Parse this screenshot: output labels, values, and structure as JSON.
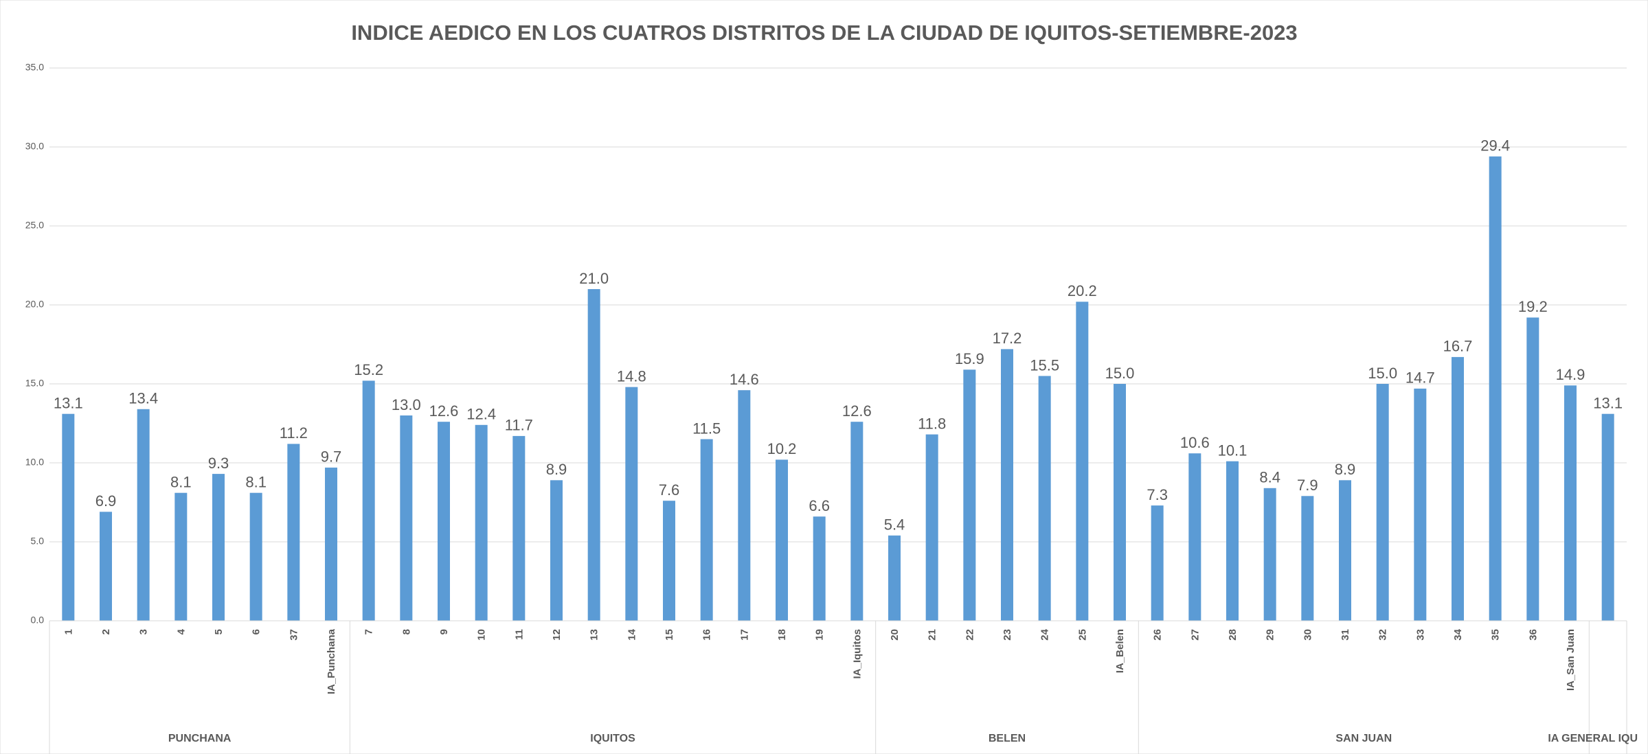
{
  "chart_data": {
    "type": "bar",
    "title": "INDICE AEDICO EN LOS CUATROS DISTRITOS DE LA CIUDAD DE IQUITOS-SETIEMBRE-2023",
    "color": "#5b9bd5",
    "grid": true,
    "ylim": [
      0,
      35
    ],
    "yticks": [
      {
        "value": 0,
        "label": "0.0"
      },
      {
        "value": 5,
        "label": "5.0"
      },
      {
        "value": 10,
        "label": "10.0"
      },
      {
        "value": 15,
        "label": "15.0"
      },
      {
        "value": 20,
        "label": "20.0"
      },
      {
        "value": 25,
        "label": "25.0"
      },
      {
        "value": 30,
        "label": "30.0"
      },
      {
        "value": 35,
        "label": "35.0"
      }
    ],
    "groups": [
      {
        "name": "PUNCHANA",
        "categories": [
          "1",
          "2",
          "3",
          "4",
          "5",
          "6",
          "37",
          "IA_Punchana"
        ],
        "values": [
          13.1,
          6.9,
          13.4,
          8.1,
          9.3,
          8.1,
          11.2,
          9.7
        ],
        "value_labels": [
          "13.1",
          "6.9",
          "13.4",
          "8.1",
          "9.3",
          "8.1",
          "11.2",
          "9.7"
        ]
      },
      {
        "name": "IQUITOS",
        "categories": [
          "7",
          "8",
          "9",
          "10",
          "11",
          "12",
          "13",
          "14",
          "15",
          "16",
          "17",
          "18",
          "19",
          "IA_Iquitos"
        ],
        "values": [
          15.2,
          13,
          12.6,
          12.4,
          11.7,
          8.9,
          21,
          14.8,
          7.6,
          11.5,
          14.6,
          10.2,
          6.6,
          12.6
        ],
        "value_labels": [
          "15.2",
          "13.0",
          "12.6",
          "12.4",
          "11.7",
          "8.9",
          "21.0",
          "14.8",
          "7.6",
          "11.5",
          "14.6",
          "10.2",
          "6.6",
          "12.6"
        ]
      },
      {
        "name": "BELEN",
        "categories": [
          "20",
          "21",
          "22",
          "23",
          "24",
          "25",
          "IA_Belen"
        ],
        "values": [
          5.4,
          11.8,
          15.9,
          17.2,
          15.5,
          20.2,
          15
        ],
        "value_labels": [
          "5.4",
          "11.8",
          "15.9",
          "17.2",
          "15.5",
          "20.2",
          "15.0"
        ]
      },
      {
        "name": "SAN JUAN",
        "categories": [
          "26",
          "27",
          "28",
          "29",
          "30",
          "31",
          "32",
          "33",
          "34",
          "35",
          "36",
          "IA_San Juan"
        ],
        "values": [
          7.3,
          10.6,
          10.1,
          8.4,
          7.9,
          8.9,
          15,
          14.7,
          16.7,
          29.4,
          19.2,
          14.9
        ],
        "value_labels": [
          "7.3",
          "10.6",
          "10.1",
          "8.4",
          "7.9",
          "8.9",
          "15.0",
          "14.7",
          "16.7",
          "29.4",
          "19.2",
          "14.9"
        ]
      },
      {
        "name": "IA GENERAL IQU",
        "categories": [
          null
        ],
        "values": [
          13.1
        ],
        "value_labels": [
          "13.1"
        ]
      }
    ]
  }
}
